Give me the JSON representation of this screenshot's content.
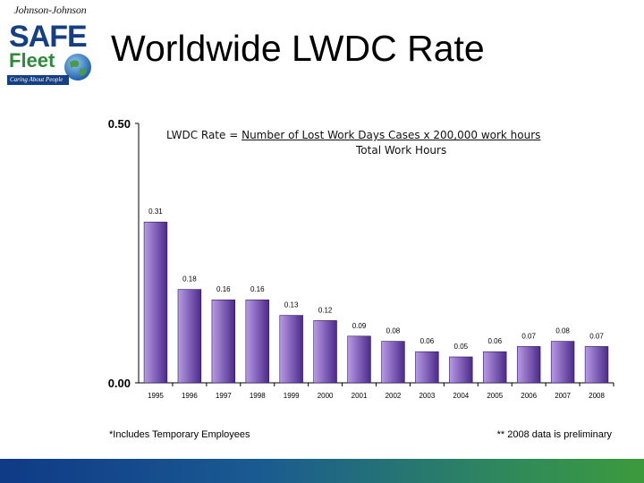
{
  "logo": {
    "brand": "Johnson-Johnson",
    "word1": "SAFE",
    "word2": "Fleet",
    "tagline": "Caring About People"
  },
  "title": "Worldwide LWDC Rate",
  "formula": {
    "prefix": "LWDC Rate = ",
    "numerator": "Number of Lost Work Days Cases x 200,000 work hours",
    "denominator": "Total Work Hours"
  },
  "footnotes": {
    "left": "*Includes Temporary Employees",
    "right": "** 2008 data is preliminary"
  },
  "chart_data": {
    "type": "bar",
    "title": "",
    "xlabel": "",
    "ylabel": "",
    "ylim": [
      0,
      0.5
    ],
    "y_ticks": [
      "0.00",
      "0.50"
    ],
    "categories": [
      "1995",
      "1996",
      "1997",
      "1998",
      "1999",
      "2000",
      "2001",
      "2002",
      "2003",
      "2004",
      "2005",
      "2006",
      "2007",
      "2008"
    ],
    "values": [
      0.31,
      0.18,
      0.16,
      0.16,
      0.13,
      0.12,
      0.09,
      0.08,
      0.06,
      0.05,
      0.06,
      0.07,
      0.08,
      0.07
    ],
    "value_labels": [
      "0.31",
      "0.18",
      "0.16",
      "0.16",
      "0.13",
      "0.12",
      "0.09",
      "0.08",
      "0.06",
      "0.05",
      "0.06",
      "0.07",
      "0.08",
      "0.07"
    ],
    "grid": false,
    "bar_color_light": "#b89ae6",
    "bar_color_dark": "#4b2a8a"
  }
}
